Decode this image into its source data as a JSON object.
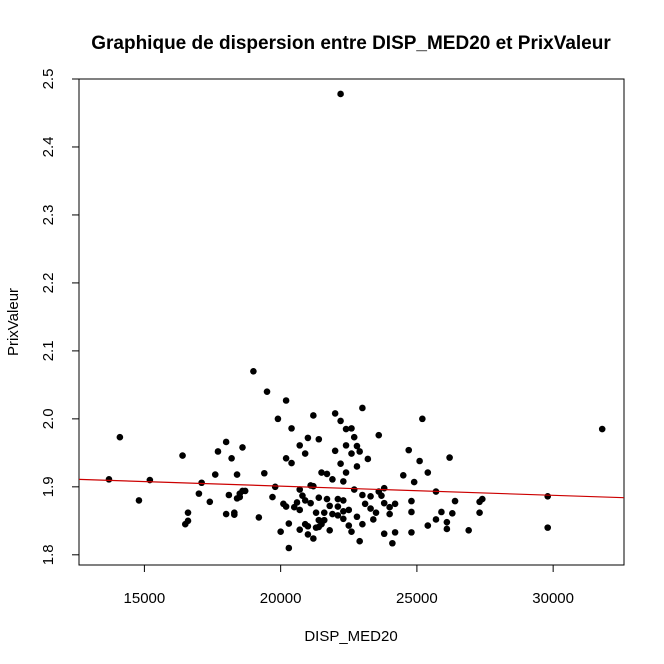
{
  "chart_data": {
    "type": "scatter",
    "title": "Graphique de dispersion entre DISP_MED20 et PrixValeur",
    "xlabel": "DISP_MED20",
    "ylabel": "PrixValeur",
    "xlim": [
      12600,
      32600
    ],
    "ylim": [
      1.785,
      2.5
    ],
    "xticks": [
      15000,
      20000,
      25000,
      30000
    ],
    "xtick_labels": [
      "15000",
      "20000",
      "25000",
      "30000"
    ],
    "yticks": [
      1.8,
      1.9,
      2.0,
      2.1,
      2.2,
      2.3,
      2.4,
      2.5
    ],
    "ytick_labels": [
      "1.8",
      "1.9",
      "2.0",
      "2.1",
      "2.2",
      "2.3",
      "2.4",
      "2.5"
    ],
    "grid": false,
    "legend": "none",
    "colors": {
      "points": "#000000",
      "fit_line": "#cc0000",
      "frame": "#000000"
    },
    "fit_line": {
      "x": [
        12600,
        32600
      ],
      "y": [
        1.911,
        1.884
      ]
    },
    "points": [
      [
        13700,
        1.911
      ],
      [
        14100,
        1.973
      ],
      [
        14800,
        1.88
      ],
      [
        15200,
        1.91
      ],
      [
        16400,
        1.946
      ],
      [
        16500,
        1.845
      ],
      [
        16600,
        1.85
      ],
      [
        16600,
        1.862
      ],
      [
        17000,
        1.89
      ],
      [
        17100,
        1.906
      ],
      [
        17400,
        1.878
      ],
      [
        17600,
        1.918
      ],
      [
        17700,
        1.952
      ],
      [
        18000,
        1.966
      ],
      [
        18000,
        1.86
      ],
      [
        18100,
        1.888
      ],
      [
        18200,
        1.942
      ],
      [
        18300,
        1.862
      ],
      [
        18300,
        1.859
      ],
      [
        18400,
        1.918
      ],
      [
        18400,
        1.883
      ],
      [
        18500,
        1.89
      ],
      [
        18500,
        1.885
      ],
      [
        18600,
        1.958
      ],
      [
        18600,
        1.894
      ],
      [
        18700,
        1.894
      ],
      [
        19000,
        2.07
      ],
      [
        19200,
        1.855
      ],
      [
        19400,
        1.92
      ],
      [
        19500,
        2.04
      ],
      [
        19700,
        1.885
      ],
      [
        19800,
        1.9
      ],
      [
        19900,
        2.0
      ],
      [
        20000,
        1.834
      ],
      [
        20100,
        1.875
      ],
      [
        20200,
        1.871
      ],
      [
        20200,
        1.942
      ],
      [
        20200,
        2.027
      ],
      [
        20300,
        1.81
      ],
      [
        20300,
        1.846
      ],
      [
        20400,
        1.935
      ],
      [
        20400,
        1.986
      ],
      [
        20500,
        1.87
      ],
      [
        20600,
        1.877
      ],
      [
        20700,
        1.837
      ],
      [
        20700,
        1.896
      ],
      [
        20700,
        1.866
      ],
      [
        20700,
        1.961
      ],
      [
        20800,
        1.887
      ],
      [
        20900,
        1.949
      ],
      [
        20900,
        1.88
      ],
      [
        20900,
        1.845
      ],
      [
        21000,
        1.972
      ],
      [
        21000,
        1.842
      ],
      [
        21000,
        1.83
      ],
      [
        21100,
        1.876
      ],
      [
        21100,
        1.902
      ],
      [
        21200,
        2.005
      ],
      [
        21200,
        1.901
      ],
      [
        21200,
        1.824
      ],
      [
        21300,
        1.862
      ],
      [
        21300,
        1.84
      ],
      [
        21400,
        1.97
      ],
      [
        21400,
        1.851
      ],
      [
        21400,
        1.884
      ],
      [
        21400,
        1.841
      ],
      [
        21500,
        1.845
      ],
      [
        21500,
        1.921
      ],
      [
        21600,
        1.862
      ],
      [
        21600,
        1.851
      ],
      [
        21700,
        1.882
      ],
      [
        21700,
        1.919
      ],
      [
        21800,
        1.836
      ],
      [
        21800,
        1.872
      ],
      [
        21900,
        1.86
      ],
      [
        21900,
        1.911
      ],
      [
        22000,
        2.008
      ],
      [
        22000,
        1.953
      ],
      [
        22100,
        1.858
      ],
      [
        22100,
        1.882
      ],
      [
        22100,
        1.871
      ],
      [
        22200,
        2.478
      ],
      [
        22200,
        1.997
      ],
      [
        22200,
        1.934
      ],
      [
        22300,
        1.853
      ],
      [
        22300,
        1.908
      ],
      [
        22300,
        1.864
      ],
      [
        22300,
        1.88
      ],
      [
        22400,
        1.985
      ],
      [
        22400,
        1.961
      ],
      [
        22400,
        1.921
      ],
      [
        22500,
        1.843
      ],
      [
        22500,
        1.866
      ],
      [
        22600,
        1.834
      ],
      [
        22600,
        1.986
      ],
      [
        22600,
        1.949
      ],
      [
        22700,
        1.896
      ],
      [
        22700,
        1.973
      ],
      [
        22800,
        1.96
      ],
      [
        22800,
        1.856
      ],
      [
        22800,
        1.93
      ],
      [
        22900,
        1.82
      ],
      [
        22900,
        1.952
      ],
      [
        23000,
        2.016
      ],
      [
        23000,
        1.888
      ],
      [
        23000,
        1.845
      ],
      [
        23100,
        1.875
      ],
      [
        23200,
        1.941
      ],
      [
        23300,
        1.868
      ],
      [
        23300,
        1.886
      ],
      [
        23400,
        1.852
      ],
      [
        23500,
        1.862
      ],
      [
        23600,
        1.976
      ],
      [
        23600,
        1.893
      ],
      [
        23700,
        1.887
      ],
      [
        23800,
        1.876
      ],
      [
        23800,
        1.898
      ],
      [
        23800,
        1.831
      ],
      [
        24000,
        1.87
      ],
      [
        24000,
        1.86
      ],
      [
        24100,
        1.817
      ],
      [
        24200,
        1.875
      ],
      [
        24200,
        1.833
      ],
      [
        24500,
        1.917
      ],
      [
        24700,
        1.954
      ],
      [
        24800,
        1.863
      ],
      [
        24800,
        1.879
      ],
      [
        24800,
        1.833
      ],
      [
        24900,
        1.907
      ],
      [
        25100,
        1.938
      ],
      [
        25200,
        2.0
      ],
      [
        25400,
        1.921
      ],
      [
        25400,
        1.843
      ],
      [
        25700,
        1.893
      ],
      [
        25700,
        1.852
      ],
      [
        25900,
        1.863
      ],
      [
        26100,
        1.838
      ],
      [
        26100,
        1.848
      ],
      [
        26200,
        1.943
      ],
      [
        26300,
        1.861
      ],
      [
        26400,
        1.879
      ],
      [
        26900,
        1.836
      ],
      [
        27300,
        1.878
      ],
      [
        27300,
        1.862
      ],
      [
        27400,
        1.882
      ],
      [
        29800,
        1.886
      ],
      [
        29800,
        1.84
      ],
      [
        31800,
        1.985
      ]
    ]
  }
}
